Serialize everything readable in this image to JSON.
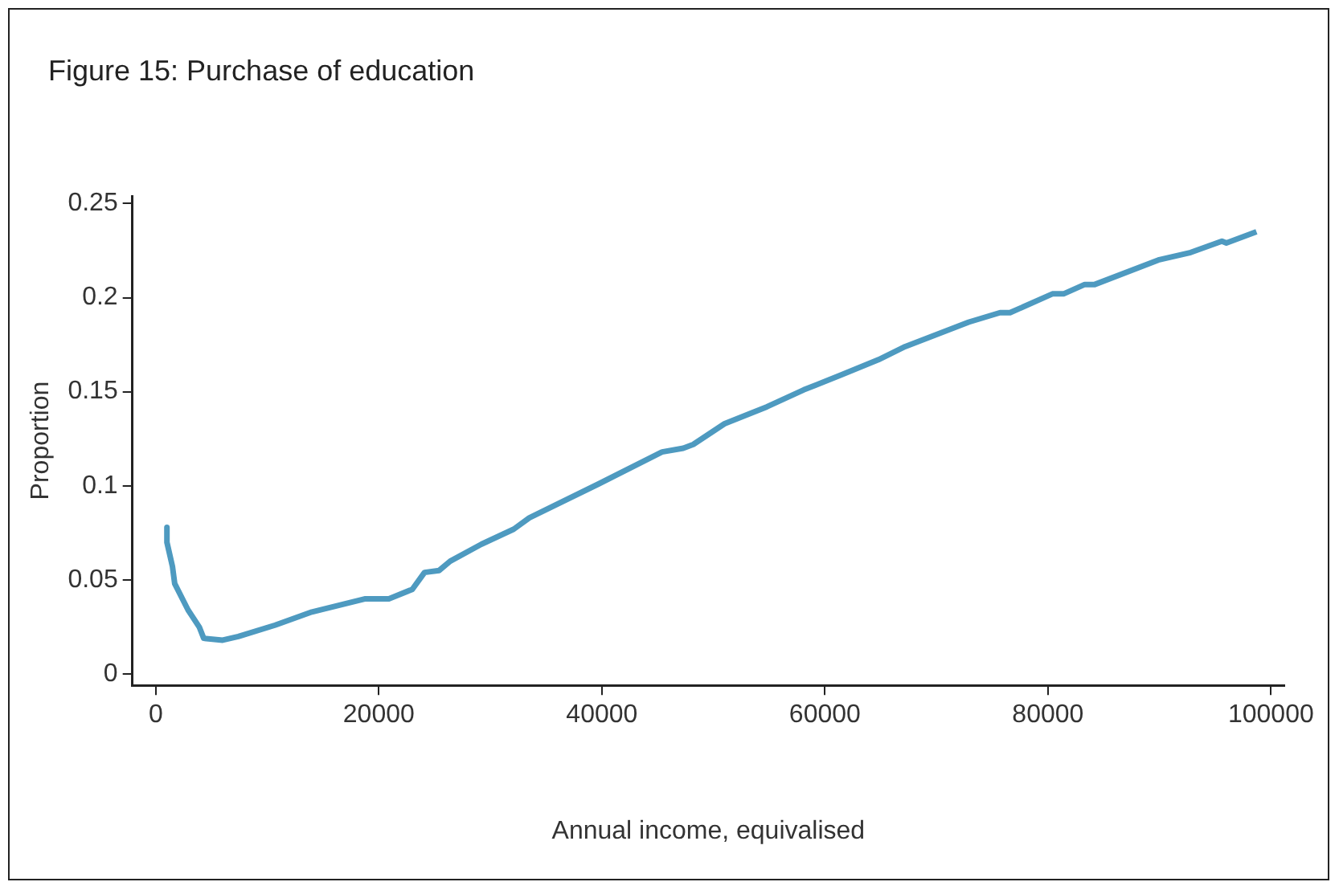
{
  "chart_data": {
    "type": "line",
    "title": "Figure 15: Purchase of education",
    "xlabel": "Annual income, equivalised",
    "ylabel": "Proportion",
    "x": [
      1000,
      1000,
      1500,
      1700,
      2900,
      3900,
      4300,
      6000,
      7400,
      10700,
      14000,
      18800,
      20900,
      23000,
      24100,
      25400,
      26400,
      29200,
      32100,
      33500,
      39700,
      45400,
      47300,
      48200,
      51000,
      54800,
      58100,
      61500,
      64800,
      67200,
      72900,
      75700,
      76600,
      80400,
      81400,
      83300,
      84200,
      89900,
      92800,
      95600,
      96000,
      98700
    ],
    "series": [
      {
        "color": "#4e9ac0",
        "values": [
          0.078,
          0.07,
          0.057,
          0.048,
          0.034,
          0.025,
          0.019,
          0.018,
          0.02,
          0.026,
          0.033,
          0.04,
          0.04,
          0.045,
          0.054,
          0.055,
          0.06,
          0.069,
          0.077,
          0.083,
          0.101,
          0.118,
          0.12,
          0.122,
          0.133,
          0.142,
          0.151,
          0.159,
          0.167,
          0.174,
          0.187,
          0.192,
          0.192,
          0.202,
          0.202,
          0.207,
          0.207,
          0.22,
          0.224,
          0.23,
          0.229,
          0.235
        ]
      }
    ],
    "xlim": [
      -2100,
      101200
    ],
    "xticks": [
      0,
      20000,
      40000,
      60000,
      80000,
      100000
    ],
    "ylim": [
      -0.006,
      0.254
    ],
    "yticks": [
      0,
      0.05,
      0.1,
      0.15,
      0.2,
      0.25
    ],
    "grid": false,
    "legend": false,
    "marker": "none",
    "line_style": "solid"
  }
}
